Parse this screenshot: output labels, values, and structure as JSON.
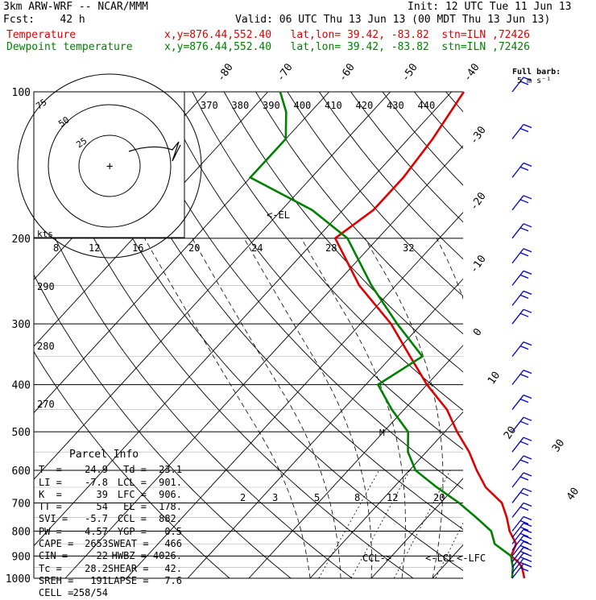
{
  "header": {
    "model": "3km ARW-WRF -- NCAR/MMM",
    "init": "Init: 12 UTC Tue 11 Jun 13",
    "fcst": "Fcst:    42 h",
    "valid": "Valid: 06 UTC Thu 13 Jun 13 (00 MDT Thu 13 Jun 13)",
    "temp_label": "Temperature",
    "temp_loc": "x,y=876.44,552.40   lat,lon= 39.42, -83.82  stn=ILN ,72426",
    "dew_label": "Dewpoint temperature",
    "dew_loc": "x,y=876.44,552.40   lat,lon= 39.42, -83.82  stn=ILN ,72426"
  },
  "barb_legend": {
    "title": "Full barb:",
    "value": "5 m s⁻¹"
  },
  "hodograph": {
    "ring_labels": [
      "25",
      "50",
      "75"
    ],
    "axis_label": "kts",
    "speed_labels": [
      "8",
      "12",
      "16",
      "20",
      "24",
      "28",
      "32"
    ]
  },
  "parcel_info": {
    "title": "Parcel Info",
    "rows": [
      [
        "T  =",
        "24.9",
        "Td =",
        "23.1"
      ],
      [
        "LI =",
        "-7.8",
        "LCL =",
        "901."
      ],
      [
        "K  =",
        "39",
        "LFC =",
        "906."
      ],
      [
        "TT =",
        "54",
        "EL =",
        "178."
      ],
      [
        "SVI =",
        "-5.7",
        "CCL =",
        "882."
      ],
      [
        "PW =",
        "4.57",
        "YGP =",
        "0.5"
      ],
      [
        "CAPE =",
        "2653",
        "SWEAT =",
        "466"
      ],
      [
        "CIN =",
        "-22",
        "HWBZ =",
        "4026."
      ],
      [
        "Tc =",
        "28.2",
        "SHEAR =",
        "42."
      ],
      [
        "SREH =",
        "191",
        "LAPSE =",
        "7.6"
      ],
      [
        "CELL =",
        "258/54",
        "",
        ""
      ]
    ]
  },
  "annotations": {
    "el": "<-EL",
    "lcl": "<-LCL",
    "lfc": "<-LFC",
    "ccl": "CCL->",
    "mark": "M"
  },
  "colors": {
    "temperature": "#e00000",
    "dewpoint": "#008000",
    "barbs": "#0000c0",
    "dry_adiabat": "#000000",
    "moist_adiabat": "#000000",
    "mixing_ratio": "#000000"
  },
  "chart_data": {
    "type": "line",
    "y_axis": "pressure (hPa), log scale",
    "yticks": [
      100,
      200,
      300,
      400,
      500,
      600,
      700,
      800,
      900,
      1000
    ],
    "isotherm_labels": [
      -80,
      -70,
      -60,
      -50,
      -40,
      -30,
      -20,
      -10,
      0,
      10,
      20,
      30,
      40
    ],
    "theta_labels": [
      370,
      380,
      390,
      400,
      410,
      420,
      430,
      440
    ],
    "theta_left_labels": [
      290,
      280,
      270
    ],
    "mixing_ratio_labels": [
      "2",
      "3",
      "5",
      "8",
      "12",
      "20"
    ],
    "series": [
      {
        "name": "Temperature",
        "points": [
          [
            1000,
            25
          ],
          [
            950,
            23
          ],
          [
            925,
            21.5
          ],
          [
            900,
            19.5
          ],
          [
            850,
            18.5
          ],
          [
            800,
            15.5
          ],
          [
            750,
            13
          ],
          [
            700,
            10
          ],
          [
            650,
            5
          ],
          [
            600,
            1
          ],
          [
            550,
            -3
          ],
          [
            500,
            -8
          ],
          [
            450,
            -13
          ],
          [
            400,
            -20
          ],
          [
            350,
            -27
          ],
          [
            300,
            -35
          ],
          [
            250,
            -46
          ],
          [
            200,
            -57
          ],
          [
            175,
            -55
          ],
          [
            150,
            -55
          ],
          [
            125,
            -56
          ],
          [
            100,
            -58
          ]
        ]
      },
      {
        "name": "Dewpoint temperature",
        "points": [
          [
            1000,
            23
          ],
          [
            950,
            21.5
          ],
          [
            925,
            20.5
          ],
          [
            900,
            19.5
          ],
          [
            850,
            15
          ],
          [
            800,
            12.5
          ],
          [
            750,
            8
          ],
          [
            700,
            3
          ],
          [
            650,
            -3
          ],
          [
            600,
            -9
          ],
          [
            550,
            -13
          ],
          [
            500,
            -16
          ],
          [
            450,
            -22
          ],
          [
            400,
            -28
          ],
          [
            350,
            -25
          ],
          [
            300,
            -34
          ],
          [
            250,
            -44
          ],
          [
            200,
            -55
          ],
          [
            175,
            -65
          ],
          [
            150,
            -80
          ],
          [
            125,
            -80
          ],
          [
            110,
            -84
          ],
          [
            100,
            -88
          ]
        ]
      }
    ],
    "wind_barbs": [
      1000,
      975,
      950,
      925,
      900,
      875,
      850,
      825,
      800,
      750,
      700,
      650,
      600,
      550,
      500,
      450,
      400,
      350,
      300,
      275,
      250,
      225,
      200,
      175,
      150,
      125,
      100
    ]
  }
}
